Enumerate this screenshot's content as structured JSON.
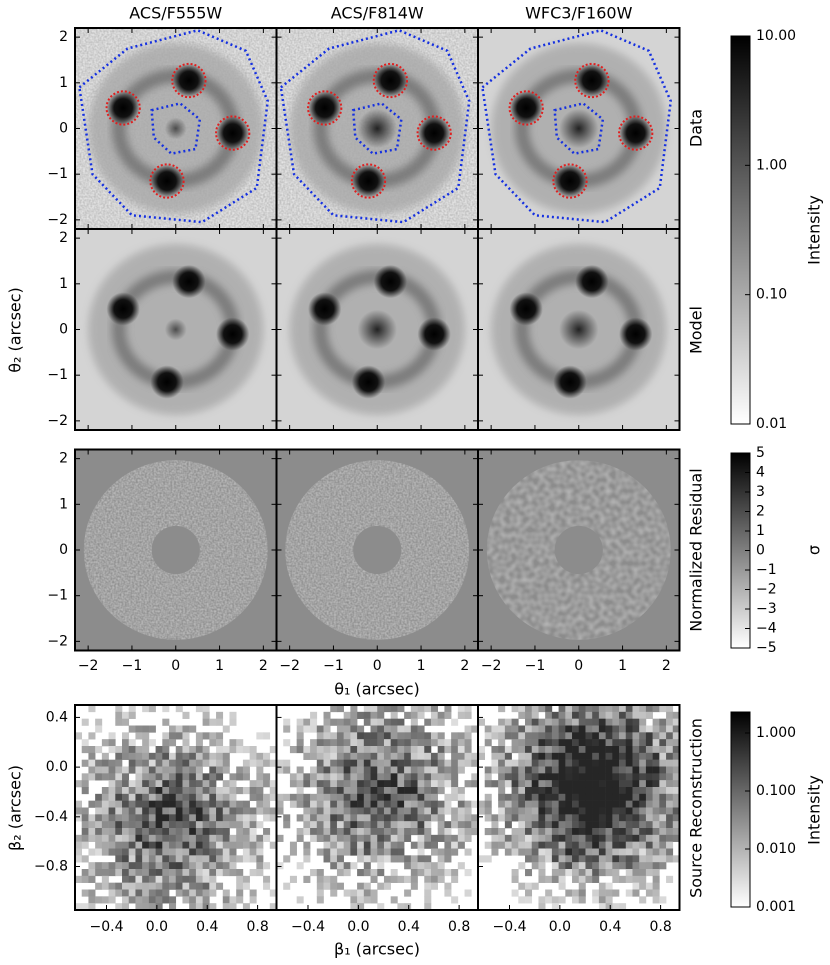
{
  "columns": [
    "ACS/F555W",
    "ACS/F814W",
    "WFC3/F160W"
  ],
  "rows": [
    "Data",
    "Model",
    "Normalized Residual",
    "Source Reconstruction"
  ],
  "image_axes": {
    "xlabel": "θ₁ (arcsec)",
    "ylabel": "θ₂ (arcsec)",
    "xlim": [
      -2.3,
      2.3
    ],
    "ylim": [
      -2.2,
      2.2
    ],
    "xticks": [
      {
        "value": -2,
        "label": "−2"
      },
      {
        "value": -1,
        "label": "−1"
      },
      0,
      1,
      2
    ],
    "yticks": [
      {
        "value": -2,
        "label": "−2"
      },
      {
        "value": -1,
        "label": "−1"
      },
      0,
      1,
      2
    ]
  },
  "source_axes": {
    "xlabel": "β₁ (arcsec)",
    "ylabel": "β₂ (arcsec)",
    "xlim": [
      -0.65,
      0.95
    ],
    "ylim": [
      -1.15,
      0.5
    ],
    "xticks": [
      {
        "value": -0.4,
        "label": "−0.4"
      },
      {
        "value": 0,
        "label": "0.0"
      },
      0.4,
      0.8
    ],
    "yticks": [
      {
        "value": -0.8,
        "label": "−0.8"
      },
      {
        "value": -0.4,
        "label": "−0.4"
      },
      {
        "value": 0,
        "label": "0.0"
      },
      0.4
    ]
  },
  "colorbars": [
    {
      "label": "Intensity",
      "log": true,
      "lim": [
        0.01,
        10
      ],
      "ticks": [
        {
          "value": 0.01,
          "label": "0.01"
        },
        {
          "value": 0.1,
          "label": "0.10"
        },
        {
          "value": 1,
          "label": "1.00"
        },
        {
          "value": 10,
          "label": "10.00"
        }
      ]
    },
    {
      "label": "σ",
      "log": false,
      "lim": [
        -5,
        5
      ],
      "ticks": [
        {
          "value": -5,
          "label": "−5"
        },
        {
          "value": -4,
          "label": "−4"
        },
        {
          "value": -3,
          "label": "−3"
        },
        {
          "value": -2,
          "label": "−2"
        },
        {
          "value": -1,
          "label": "−1"
        },
        0,
        1,
        2,
        3,
        4,
        5
      ]
    },
    {
      "label": "Intensity",
      "log": true,
      "lim": [
        0.001,
        2.3
      ],
      "ticks": [
        {
          "value": 0.001,
          "label": "0.001"
        },
        {
          "value": 0.01,
          "label": "0.010"
        },
        {
          "value": 0.1,
          "label": "0.100"
        },
        {
          "value": 1,
          "label": "1.000"
        }
      ]
    }
  ]
}
